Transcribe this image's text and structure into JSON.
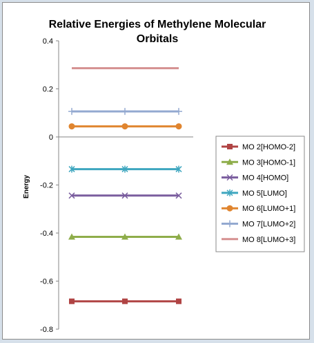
{
  "chart_data": {
    "type": "line",
    "title": "Relative Energies of Methylene Molecular Orbitals",
    "title_lines": [
      "Relative Energies of Methylene Molecular",
      "Orbitals"
    ],
    "xlabel": "",
    "ylabel": "Energy",
    "ylim": [
      -0.8,
      0.4
    ],
    "yticks": [
      {
        "value": 0.4,
        "label": "0.4"
      },
      {
        "value": 0.2,
        "label": "0.2"
      },
      {
        "value": 0,
        "label": "0"
      },
      {
        "value": -0.2,
        "label": "-0.2"
      },
      {
        "value": -0.4,
        "label": "-0.4"
      },
      {
        "value": -0.6,
        "label": "-0.6"
      },
      {
        "value": -0.8,
        "label": "-0.8"
      }
    ],
    "x": [
      1,
      2,
      3
    ],
    "grid": false,
    "legend_position": "right",
    "series": [
      {
        "name": "MO 2[HOMO-2]",
        "values": [
          -0.684,
          -0.684,
          -0.684
        ],
        "color": "#b04444",
        "marker": "square"
      },
      {
        "name": "MO 3[HOMO-1]",
        "values": [
          -0.416,
          -0.416,
          -0.416
        ],
        "color": "#8ead4a",
        "marker": "triangle"
      },
      {
        "name": "MO 4[HOMO]",
        "values": [
          -0.244,
          -0.244,
          -0.244
        ],
        "color": "#7a5d9e",
        "marker": "x"
      },
      {
        "name": "MO 5[LUMO]",
        "values": [
          -0.134,
          -0.134,
          -0.134
        ],
        "color": "#3ea6bf",
        "marker": "star"
      },
      {
        "name": "MO 6[LUMO+1]",
        "values": [
          0.044,
          0.044,
          0.044
        ],
        "color": "#e0852f",
        "marker": "circle"
      },
      {
        "name": "MO 7[LUMO+2]",
        "values": [
          0.106,
          0.106,
          0.106
        ],
        "color": "#93a9d0",
        "marker": "plus"
      },
      {
        "name": "MO 8[LUMO+3]",
        "values": [
          0.286,
          0.286,
          0.286
        ],
        "color": "#d59090",
        "marker": "none"
      }
    ]
  }
}
